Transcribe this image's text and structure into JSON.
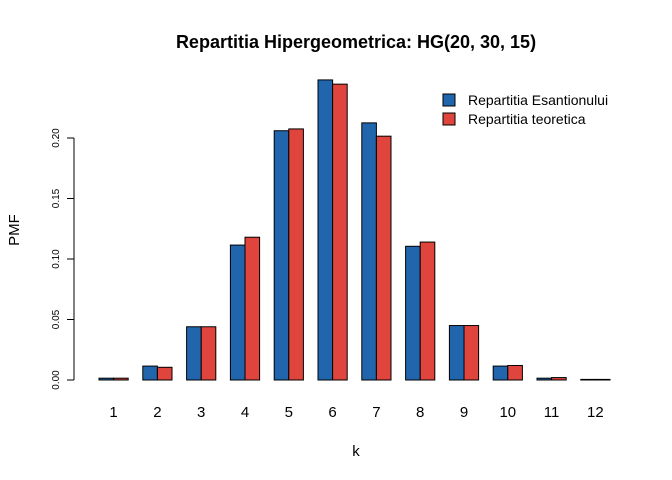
{
  "chart_data": {
    "type": "bar",
    "title": "Repartitia Hipergeometrica: HG(20, 30, 15)",
    "xlabel": "k",
    "ylabel": "PMF",
    "categories": [
      "1",
      "2",
      "3",
      "4",
      "5",
      "6",
      "7",
      "8",
      "9",
      "10",
      "11",
      "12"
    ],
    "yticks": [
      "0.00",
      "0.05",
      "0.10",
      "0.15",
      "0.20"
    ],
    "ylim": [
      0,
      0.25
    ],
    "grid": false,
    "legend_position": "top-right",
    "series": [
      {
        "name": "Repartitia Esantionului",
        "color": "#2166ac",
        "values": [
          0.0015,
          0.0115,
          0.044,
          0.1115,
          0.206,
          0.248,
          0.2125,
          0.1105,
          0.045,
          0.0115,
          0.0015,
          0.0005
        ]
      },
      {
        "name": "Repartitia teoretica",
        "color": "#e0453d",
        "values": [
          0.0015,
          0.0105,
          0.044,
          0.118,
          0.2075,
          0.2445,
          0.2015,
          0.114,
          0.045,
          0.012,
          0.002,
          0.0003
        ]
      }
    ]
  }
}
